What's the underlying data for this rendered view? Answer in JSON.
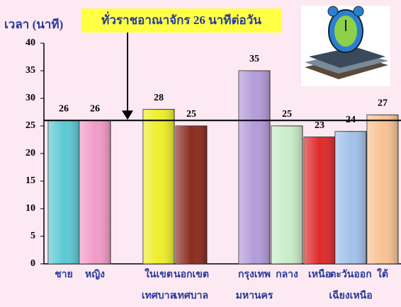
{
  "chart_data": {
    "type": "bar",
    "ylabel": "เวลา (นาที)",
    "annotation": "ทั่วราชอาณาจักร 26 นาทีต่อวัน",
    "reference_value": 26,
    "categories": [
      [
        "ชาย"
      ],
      [
        "หญิง"
      ],
      [
        "ในเขต",
        "เทศบาล"
      ],
      [
        "นอกเขต",
        "เทศบาล"
      ],
      [
        "กรุงเทพ",
        "มหานคร"
      ],
      [
        "กลาง"
      ],
      [
        "เหนือ"
      ],
      [
        "ตะวันออก",
        "เฉียงเหนือ"
      ],
      [
        "ใต้"
      ]
    ],
    "values": [
      26,
      26,
      28,
      25,
      35,
      25,
      23,
      24,
      27
    ],
    "colors": [
      "#5cc9d3",
      "#f29bc9",
      "#eeee2c",
      "#8c2b1f",
      "#b49bd9",
      "#c9edc9",
      "#e02a2a",
      "#a3c2ea",
      "#f8c293"
    ],
    "ylim": [
      0,
      40
    ],
    "yticks": [
      0,
      5,
      10,
      15,
      20,
      25,
      30,
      35,
      40
    ]
  }
}
